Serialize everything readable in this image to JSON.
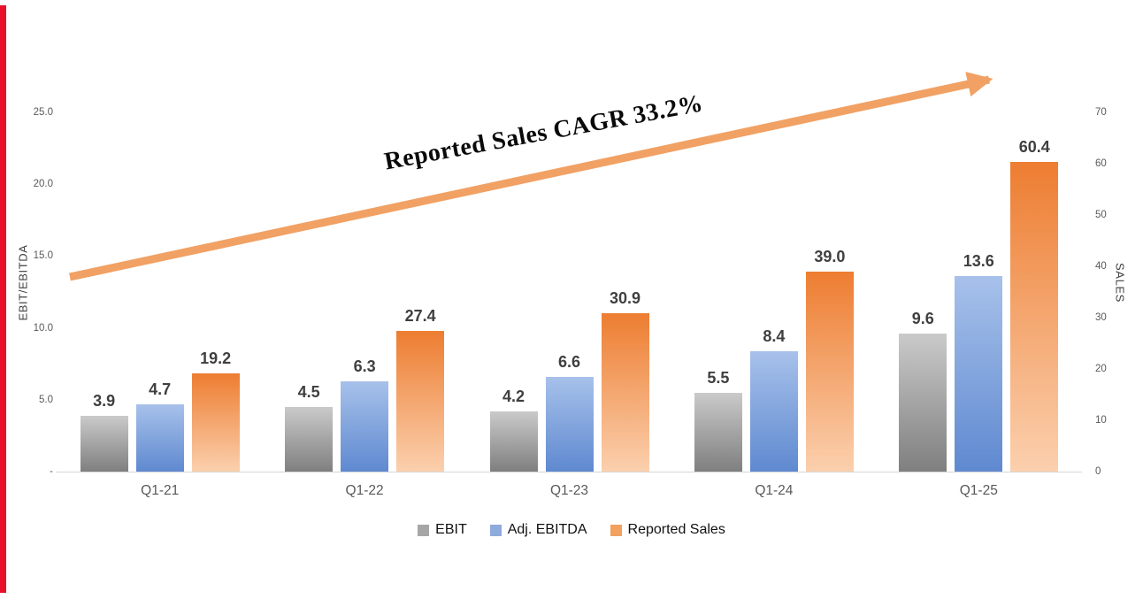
{
  "page": {
    "background": "#ffffff",
    "accent_stripe_color": "#e8112d"
  },
  "chart_data": {
    "type": "bar",
    "title": "",
    "categories": [
      "Q1-21",
      "Q1-22",
      "Q1-23",
      "Q1-24",
      "Q1-25"
    ],
    "series": [
      {
        "name": "EBIT",
        "axis": "left",
        "values": [
          3.9,
          4.5,
          4.2,
          5.5,
          9.6
        ],
        "color_top": "#cacaca",
        "color_bottom": "#7f7f7f",
        "legend_color": "#a6a6a6"
      },
      {
        "name": "Adj. EBITDA",
        "axis": "left",
        "values": [
          4.7,
          6.3,
          6.6,
          8.4,
          13.6
        ],
        "color_top": "#a7c1ea",
        "color_bottom": "#5f89d0",
        "legend_color": "#8faadc"
      },
      {
        "name": "Reported Sales",
        "axis": "right",
        "values": [
          19.2,
          27.4,
          30.9,
          39.0,
          60.4
        ],
        "color_top": "#ed7d31",
        "color_bottom": "#fbd0ae",
        "legend_color": "#f2a15f"
      }
    ],
    "left_axis": {
      "label": "EBIT/EBITDA",
      "min": 0,
      "max": 25,
      "tick_values": [
        25,
        20,
        15,
        10,
        5,
        0
      ],
      "tick_labels": [
        "25.0",
        "20.0",
        "15.0",
        "10.0",
        "5.0",
        "-"
      ]
    },
    "right_axis": {
      "label": "SALES",
      "min": 0,
      "max": 70,
      "tick_values": [
        70,
        60,
        50,
        40,
        30,
        20,
        10,
        0
      ],
      "tick_labels": [
        "70",
        "60",
        "50",
        "40",
        "30",
        "20",
        "10",
        "0"
      ]
    },
    "annotation": {
      "text": "Reported Sales CAGR 33.2%",
      "arrow_color": "#f1a164"
    },
    "legend_position": "bottom",
    "grid": false
  }
}
